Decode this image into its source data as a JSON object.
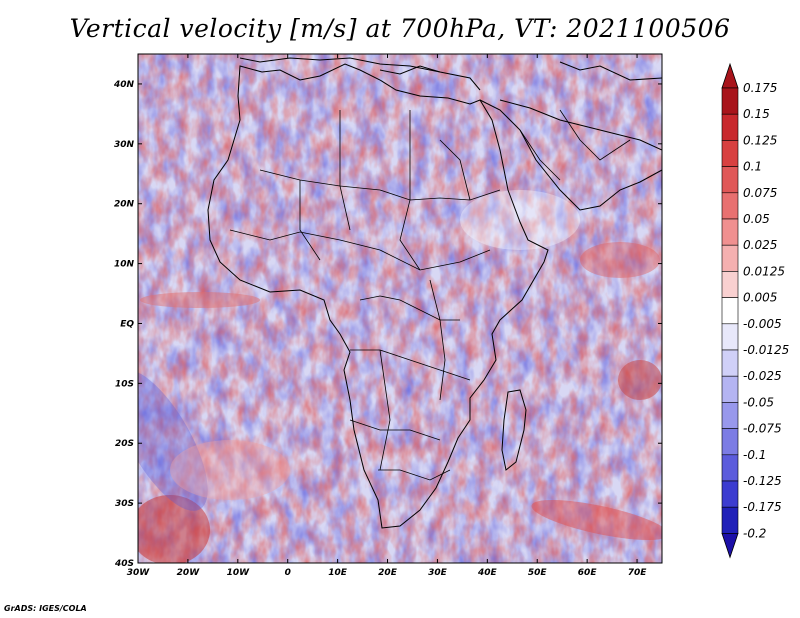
{
  "title": "Vertical velocity [m/s] at 700hPa, VT: 2021100506",
  "credit": "GrADS: IGES/COLA",
  "map": {
    "lon_ticks": [
      "30W",
      "20W",
      "10W",
      "0",
      "10E",
      "20E",
      "30E",
      "40E",
      "50E",
      "60E",
      "70E"
    ],
    "lat_ticks": [
      "40N",
      "30N",
      "20N",
      "10N",
      "EQ",
      "10S",
      "20S",
      "30S",
      "40S"
    ],
    "lon_range": [
      -30,
      75
    ],
    "lat_range": [
      -40,
      45
    ]
  },
  "colorbar": {
    "labels": [
      "0.175",
      "0.15",
      "0.125",
      "0.1",
      "0.075",
      "0.05",
      "0.025",
      "0.0125",
      "0.005",
      "-0.005",
      "-0.0125",
      "-0.025",
      "-0.05",
      "-0.075",
      "-0.1",
      "-0.125",
      "-0.175",
      "-0.2"
    ],
    "colors": [
      "#a8141b",
      "#c8282d",
      "#d84040",
      "#e05858",
      "#e87070",
      "#f09090",
      "#f5b0b0",
      "#f9d0d0",
      "#ffffff",
      "#e8e8fa",
      "#d0d0f8",
      "#b4b4f2",
      "#9898ec",
      "#7c7ce4",
      "#5c5cdc",
      "#3c3cd0",
      "#2020b8",
      "#1010a0"
    ],
    "top_color": "#a8141b",
    "bottom_color": "#1c10a8"
  }
}
